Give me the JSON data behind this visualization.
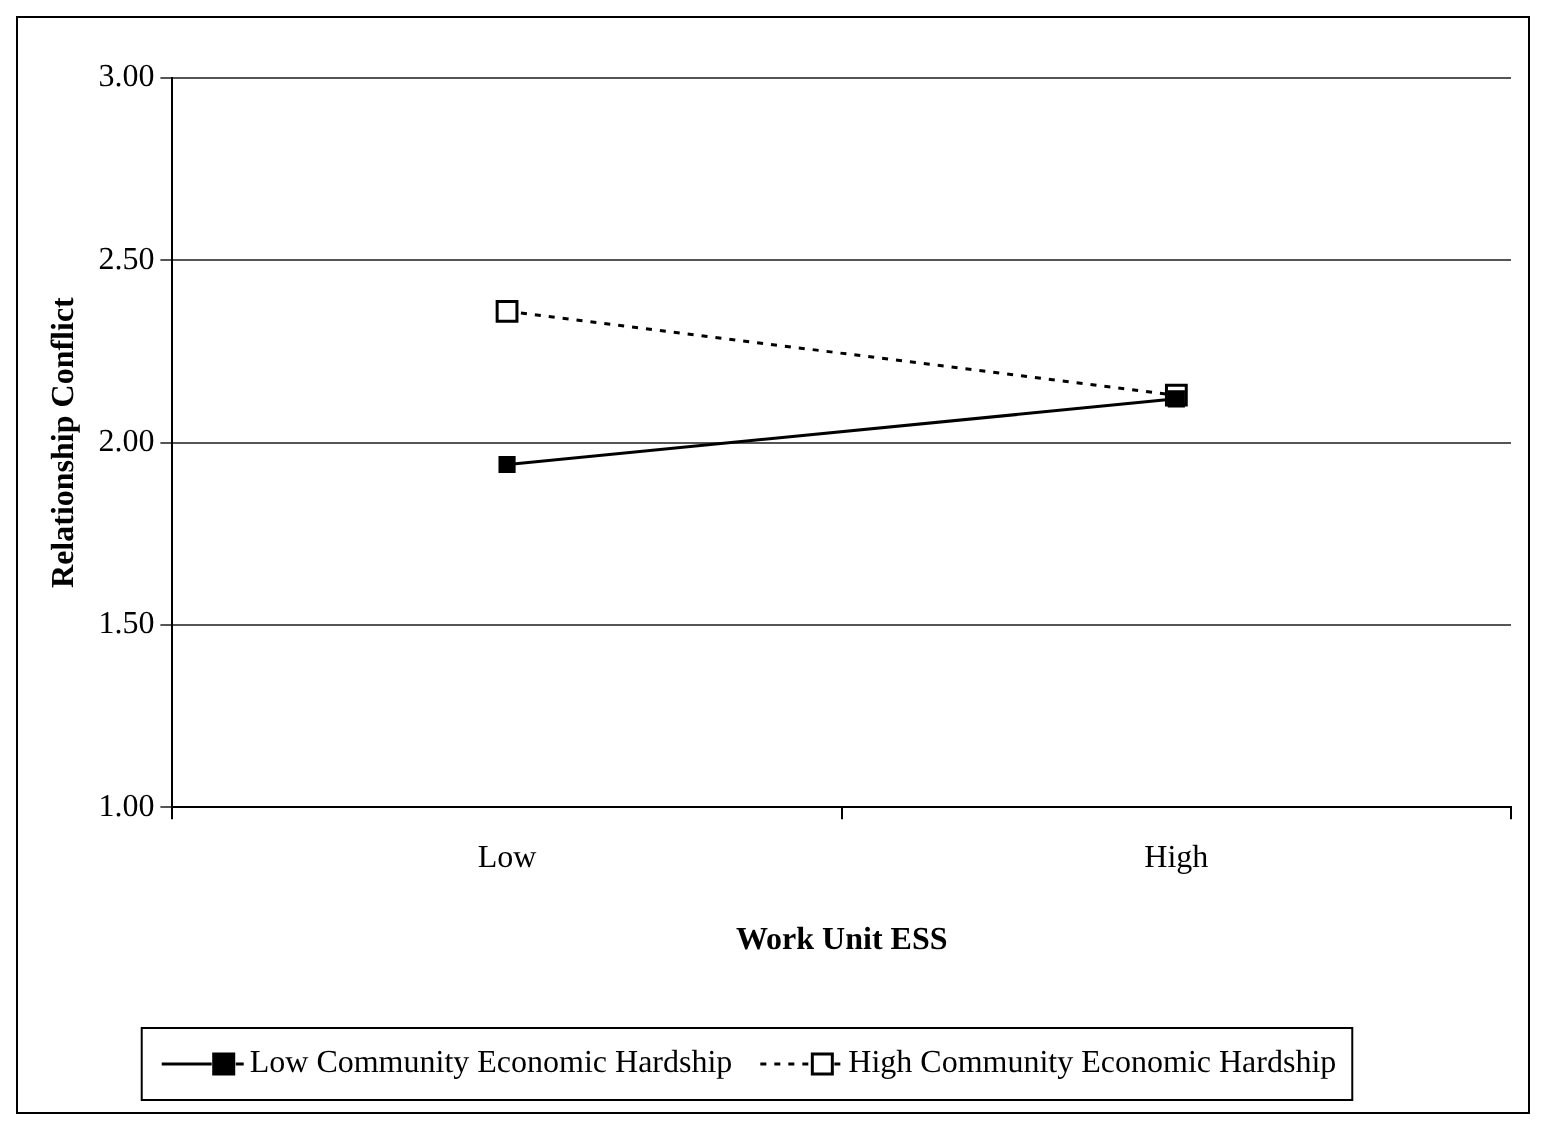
{
  "chart_data": {
    "type": "line",
    "xlabel": "Work Unit ESS",
    "ylabel": "Relationship Conflict",
    "categories": [
      "Low",
      "High"
    ],
    "series": [
      {
        "name": "Low Community Economic Hardship",
        "color": "#000000",
        "values": [
          1.94,
          2.12
        ],
        "marker": "square",
        "line_style": "solid"
      },
      {
        "name": "High Community Economic Hardship",
        "color": "#000000",
        "values": [
          2.36,
          2.13
        ],
        "marker": "square",
        "line_style": "dotted"
      }
    ],
    "ylim": [
      1,
      3
    ],
    "yticks": [
      {
        "value": 1,
        "label": "1.00"
      },
      {
        "value": 1.5,
        "label": "1.50"
      },
      {
        "value": 2,
        "label": "2.00"
      },
      {
        "value": 2.5,
        "label": "2.50"
      },
      {
        "value": 3,
        "label": "3.00"
      }
    ],
    "grid": "y",
    "legend": "bottom"
  }
}
